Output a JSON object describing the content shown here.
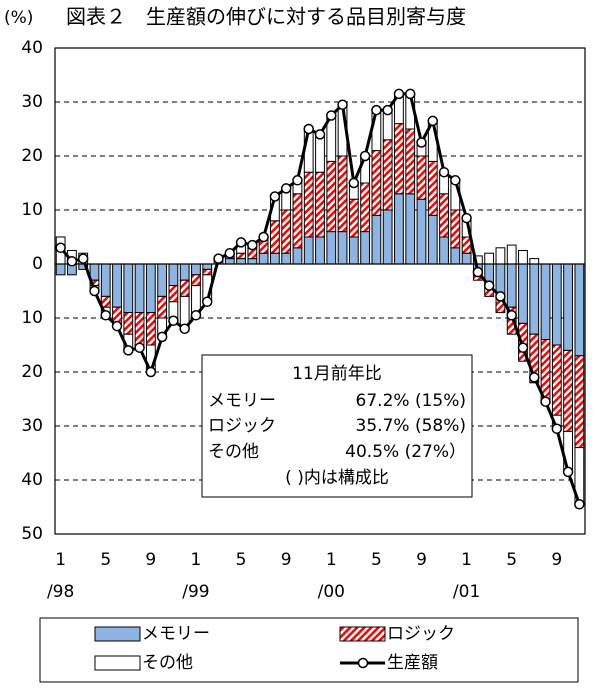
{
  "chart_data": {
    "type": "bar",
    "title": "図表２　生産額の伸びに対する品目別寄与度",
    "y_label": "(%)",
    "categories": [
      "1",
      null,
      null,
      null,
      "5",
      null,
      null,
      null,
      "9",
      null,
      null,
      null,
      "1",
      null,
      null,
      null,
      "5",
      null,
      null,
      null,
      "9",
      null,
      null,
      null,
      "1",
      null,
      null,
      null,
      "5",
      null,
      null,
      null,
      "9",
      null,
      null,
      null,
      "1",
      null,
      null,
      null,
      "5",
      null,
      null,
      null,
      "9",
      null,
      null
    ],
    "category_years": [
      "/98",
      null,
      null,
      null,
      null,
      null,
      null,
      null,
      null,
      null,
      null,
      null,
      "/99",
      null,
      null,
      null,
      null,
      null,
      null,
      null,
      null,
      null,
      null,
      null,
      "/00",
      null,
      null,
      null,
      null,
      null,
      null,
      null,
      null,
      null,
      null,
      null,
      "/01",
      null,
      null,
      null,
      null,
      null,
      null,
      null,
      null,
      null,
      null
    ],
    "series": [
      {
        "name": "メモリー",
        "type": "bar",
        "color": "#8db4e2",
        "values": [
          -2,
          -2,
          -1,
          -3,
          -6,
          -8,
          -9,
          -9,
          -9,
          -6,
          -4,
          -3,
          -2,
          -1,
          1,
          1,
          1,
          1,
          2,
          2,
          2,
          3,
          5,
          5,
          6,
          6,
          5,
          6,
          9,
          10,
          13,
          13,
          12,
          9,
          5,
          3,
          2,
          -2,
          -4,
          -6,
          -8,
          -11,
          -13,
          -14,
          -15,
          -16,
          -17
        ]
      },
      {
        "name": "ロジック",
        "type": "bar",
        "color": "#ff0000",
        "hatch": true,
        "values": [
          0,
          0,
          0,
          -1,
          -2,
          -3,
          -4,
          -6,
          -6,
          -4,
          -3,
          -3,
          -2,
          -1,
          0,
          1,
          1,
          2,
          3,
          6,
          8,
          10,
          12,
          12,
          13,
          14,
          7,
          9,
          12,
          13,
          13,
          12,
          8,
          10,
          8,
          7,
          3,
          -1,
          -2,
          -3,
          -5,
          -7,
          -9,
          -11,
          -13,
          -15,
          -17
        ]
      },
      {
        "name": "その他",
        "type": "bar",
        "color": "#ffffff",
        "values": [
          5,
          2.5,
          2,
          -1,
          -1.5,
          -0.5,
          -3,
          -0.5,
          -5,
          -3.5,
          -3.5,
          -6,
          -5.5,
          -5,
          0,
          0,
          2,
          0.5,
          0,
          4.5,
          4,
          2.5,
          8,
          7,
          8.5,
          9.5,
          3,
          5,
          7.5,
          5.5,
          5.5,
          6.5,
          2.5,
          7.5,
          4,
          5.5,
          3.5,
          1.5,
          2,
          3,
          3.5,
          2.5,
          1,
          -0.5,
          -2.5,
          -7.5,
          -10.5
        ]
      },
      {
        "name": "生産額",
        "type": "line",
        "color": "#000000",
        "values": [
          3,
          0.5,
          1,
          -5,
          -9.5,
          -11.5,
          -16,
          -15.5,
          -20,
          -13.5,
          -10.5,
          -12,
          -9.5,
          -7,
          1,
          2,
          4,
          3.5,
          5,
          12.5,
          14,
          15.5,
          25,
          24,
          27.5,
          29.5,
          15,
          20,
          28.5,
          28.5,
          31.5,
          31.5,
          22.5,
          26.5,
          17,
          15.5,
          8.5,
          -1.5,
          -4,
          -6,
          -9.5,
          -15.5,
          -21,
          -25.5,
          -30.5,
          -38.5,
          -44.5
        ]
      }
    ],
    "ylim": [
      -50,
      40
    ],
    "yticks": [
      40,
      30,
      20,
      10,
      0,
      {
        "value": -10,
        "label": "10"
      },
      {
        "value": -20,
        "label": "20"
      },
      {
        "value": -30,
        "label": "30"
      },
      {
        "value": -40,
        "label": "40"
      },
      {
        "value": -50,
        "label": "50"
      }
    ],
    "grid": true,
    "legend": "bottom",
    "annotation": {
      "title": "11月前年比",
      "rows": [
        [
          "メモリー",
          "67.2% (15%)"
        ],
        [
          "ロジック",
          "35.7% (58%)"
        ],
        [
          "その他",
          "40.5% (27%）"
        ]
      ],
      "note": "( )内は構成比"
    }
  }
}
